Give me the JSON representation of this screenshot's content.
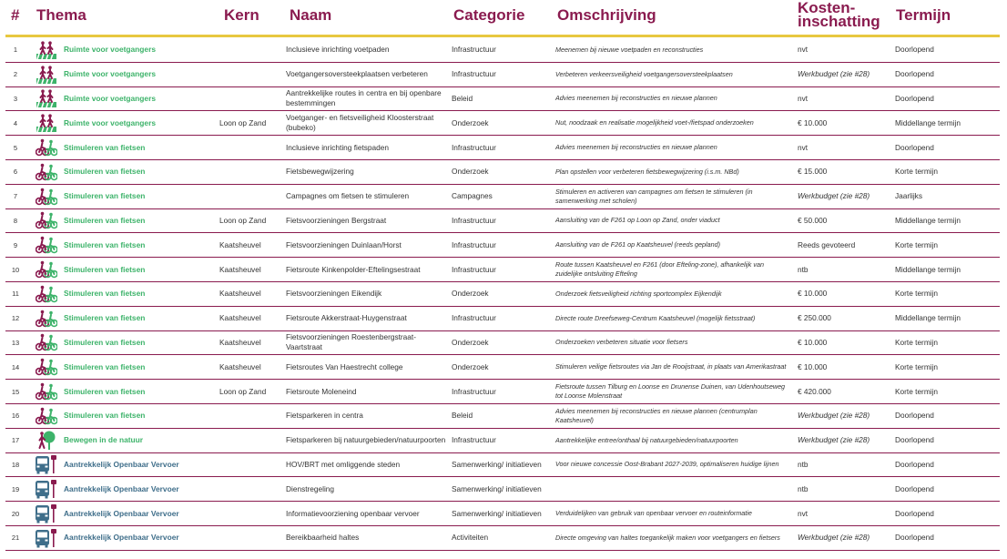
{
  "header": {
    "num": "#",
    "thema": "Thema",
    "kern": "Kern",
    "naam": "Naam",
    "categorie": "Categorie",
    "omschrijving": "Omschrijving",
    "kosten_line1": "Kosten-",
    "kosten_line2": "inschatting",
    "termijn": "Termijn"
  },
  "colors": {
    "header_text": "#8a1b4f",
    "gold_rule": "#e8c840",
    "row_rule": "#8a1b4f",
    "thema_green": "#3db36a",
    "thema_blue": "#3f6e8a"
  },
  "rows": [
    {
      "num": "1",
      "icon": "pedestrians-icon",
      "thema": "Ruimte voor voetgangers",
      "kern": "",
      "naam": "Inclusieve inrichting voetpaden",
      "categorie": "Infrastructuur",
      "omschrijving": "Meenemen bij nieuwe voetpaden en reconstructies",
      "kosten": "nvt",
      "termijn": "Doorlopend",
      "tone": "green",
      "cost_italic": false
    },
    {
      "num": "2",
      "icon": "pedestrians-icon",
      "thema": "Ruimte voor voetgangers",
      "kern": "",
      "naam": "Voetgangersoversteekplaatsen verbeteren",
      "categorie": "Infrastructuur",
      "omschrijving": "Verbeteren verkeersveiligheid voetgangersoversteekplaatsen",
      "kosten": "Werkbudget (zie #28)",
      "termijn": "Doorlopend",
      "tone": "green",
      "cost_italic": true
    },
    {
      "num": "3",
      "icon": "pedestrians-icon",
      "thema": "Ruimte voor voetgangers",
      "kern": "",
      "naam": "Aantrekkelijke routes in centra en bij openbare bestemmingen",
      "categorie": "Beleid",
      "omschrijving": "Advies meenemen bij reconstructies en nieuwe plannen",
      "kosten": "nvt",
      "termijn": "Doorlopend",
      "tone": "green",
      "cost_italic": false
    },
    {
      "num": "4",
      "icon": "pedestrians-icon",
      "thema": "Ruimte voor voetgangers",
      "kern": "Loon op Zand",
      "naam": "Voetganger- en fietsveiligheid Kloosterstraat (bubeko)",
      "categorie": "Onderzoek",
      "omschrijving": "Nut, noodzaak en realisatie mogelijkheid voet-/fietspad onderzoeken",
      "kosten": "€ 10.000",
      "termijn": "Middellange termijn",
      "tone": "green",
      "cost_italic": false
    },
    {
      "num": "5",
      "icon": "cyclists-icon",
      "thema": "Stimuleren van fietsen",
      "kern": "",
      "naam": "Inclusieve inrichting fietspaden",
      "categorie": "Infrastructuur",
      "omschrijving": "Advies meenemen bij reconstructies en nieuwe plannen",
      "kosten": "nvt",
      "termijn": "Doorlopend",
      "tone": "green",
      "cost_italic": false
    },
    {
      "num": "6",
      "icon": "cyclists-icon",
      "thema": "Stimuleren van fietsen",
      "kern": "",
      "naam": "Fietsbewegwijzering",
      "categorie": "Onderzoek",
      "omschrijving": "Plan opstellen voor verbeteren fietsbewegwijzering (i.s.m. NBd)",
      "kosten": "€ 15.000",
      "termijn": "Korte termijn",
      "tone": "green",
      "cost_italic": false
    },
    {
      "num": "7",
      "icon": "cyclists-icon",
      "thema": "Stimuleren van fietsen",
      "kern": "",
      "naam": "Campagnes om fietsen te stimuleren",
      "categorie": "Campagnes",
      "omschrijving": "Stimuleren en activeren van campagnes om fietsen te stimuleren (in samenwerking met scholen)",
      "kosten": "Werkbudget (zie #28)",
      "termijn": "Jaarlijks",
      "tone": "green",
      "cost_italic": true
    },
    {
      "num": "8",
      "icon": "cyclists-icon",
      "thema": "Stimuleren van fietsen",
      "kern": "Loon op Zand",
      "naam": "Fietsvoorzieningen Bergstraat",
      "categorie": "Infrastructuur",
      "omschrijving": "Aansluiting van de F261 op Loon op Zand, onder viaduct",
      "kosten": "€ 50.000",
      "termijn": "Middellange termijn",
      "tone": "green",
      "cost_italic": false
    },
    {
      "num": "9",
      "icon": "cyclists-icon",
      "thema": "Stimuleren van fietsen",
      "kern": "Kaatsheuvel",
      "naam": "Fietsvoorzieningen Duinlaan/Horst",
      "categorie": "Infrastructuur",
      "omschrijving": "Aansluiting van de F261 op Kaatsheuvel (reeds gepland)",
      "kosten": "Reeds gevoteerd",
      "termijn": "Korte termijn",
      "tone": "green",
      "cost_italic": false
    },
    {
      "num": "10",
      "icon": "cyclists-icon",
      "thema": "Stimuleren van fietsen",
      "kern": "Kaatsheuvel",
      "naam": "Fietsroute Kinkenpolder-Eftelingsestraat",
      "categorie": "Infrastructuur",
      "omschrijving": "Route tussen Kaatsheuvel en F261 (door Efteling-zone), afhankelijk van zuidelijke ontsluiting Efteling",
      "kosten": "ntb",
      "termijn": "Middellange termijn",
      "tone": "green",
      "cost_italic": false
    },
    {
      "num": "11",
      "icon": "cyclists-icon",
      "thema": "Stimuleren van fietsen",
      "kern": "Kaatsheuvel",
      "naam": "Fietsvoorzieningen Eikendijk",
      "categorie": "Onderzoek",
      "omschrijving": "Onderzoek fietsveiligheid richting sportcomplex Eijkendijk",
      "kosten": "€ 10.000",
      "termijn": "Korte termijn",
      "tone": "green",
      "cost_italic": false
    },
    {
      "num": "12",
      "icon": "cyclists-icon",
      "thema": "Stimuleren van fietsen",
      "kern": "Kaatsheuvel",
      "naam": "Fietsroute Akkerstraat-Huygenstraat",
      "categorie": "Infrastructuur",
      "omschrijving": "Directe route Dreefseweg-Centrum Kaatsheuvel (mogelijk fietsstraat)",
      "kosten": "€ 250.000",
      "termijn": "Middellange termijn",
      "tone": "green",
      "cost_italic": false
    },
    {
      "num": "13",
      "icon": "cyclists-icon",
      "thema": "Stimuleren van fietsen",
      "kern": "Kaatsheuvel",
      "naam": "Fietsvoorzieningen Roestenbergstraat-Vaartstraat",
      "categorie": "Onderzoek",
      "omschrijving": "Onderzoeken verbeteren situatie voor fietsers",
      "kosten": "€ 10.000",
      "termijn": "Korte termijn",
      "tone": "green",
      "cost_italic": false
    },
    {
      "num": "14",
      "icon": "cyclists-icon",
      "thema": "Stimuleren van fietsen",
      "kern": "Kaatsheuvel",
      "naam": "Fietsroutes Van Haestrecht college",
      "categorie": "Onderzoek",
      "omschrijving": "Stimuleren veilige fietsroutes via Jan de Rooijstraat, in plaats van Amerikastraat",
      "kosten": "€ 10.000",
      "termijn": "Korte termijn",
      "tone": "green",
      "cost_italic": false
    },
    {
      "num": "15",
      "icon": "cyclists-icon",
      "thema": "Stimuleren van fietsen",
      "kern": "Loon op Zand",
      "naam": "Fietsroute Moleneind",
      "categorie": "Infrastructuur",
      "omschrijving": "Fietsroute tussen Tilburg en Loonse en Drunense Duinen, van Udenhoutseweg tot Loonse Molenstraat",
      "kosten": "€ 420.000",
      "termijn": "Korte termijn",
      "tone": "green",
      "cost_italic": false
    },
    {
      "num": "16",
      "icon": "cyclists-icon",
      "thema": "Stimuleren van fietsen",
      "kern": "",
      "naam": "Fietsparkeren in centra",
      "categorie": "Beleid",
      "omschrijving": "Advies meenemen bij reconstructies en nieuwe plannen (centrumplan Kaatsheuvel)",
      "kosten": "Werkbudget (zie #28)",
      "termijn": "Doorlopend",
      "tone": "green",
      "cost_italic": true
    },
    {
      "num": "17",
      "icon": "nature-walker-icon",
      "thema": "Bewegen in de natuur",
      "kern": "",
      "naam": "Fietsparkeren bij natuurgebieden/natuurpoorten",
      "categorie": "Infrastructuur",
      "omschrijving": "Aantrekkelijke entree/onthaal bij natuurgebieden/natuurpoorten",
      "kosten": "Werkbudget (zie #28)",
      "termijn": "Doorlopend",
      "tone": "green",
      "cost_italic": true
    },
    {
      "num": "18",
      "icon": "bus-icon",
      "thema": "Aantrekkelijk Openbaar Vervoer",
      "kern": "",
      "naam": "HOV/BRT met omliggende steden",
      "categorie": "Samenwerking/ initiatieven",
      "omschrijving": "Voor nieuwe concessie Oost-Brabant 2027-2039, optimaliseren huidige lijnen",
      "kosten": "ntb",
      "termijn": "Doorlopend",
      "tone": "blue",
      "cost_italic": false
    },
    {
      "num": "19",
      "icon": "bus-icon",
      "thema": "Aantrekkelijk Openbaar Vervoer",
      "kern": "",
      "naam": "Dienstregeling",
      "categorie": "Samenwerking/ initiatieven",
      "omschrijving": "",
      "kosten": "ntb",
      "termijn": "Doorlopend",
      "tone": "blue",
      "cost_italic": false
    },
    {
      "num": "20",
      "icon": "bus-icon",
      "thema": "Aantrekkelijk Openbaar Vervoer",
      "kern": "",
      "naam": "Informatievoorziening openbaar vervoer",
      "categorie": "Samenwerking/ initiatieven",
      "omschrijving": "Verduidelijken van gebruik van openbaar vervoer en routeinformatie",
      "kosten": "nvt",
      "termijn": "Doorlopend",
      "tone": "blue",
      "cost_italic": false
    },
    {
      "num": "21",
      "icon": "bus-icon",
      "thema": "Aantrekkelijk Openbaar Vervoer",
      "kern": "",
      "naam": "Bereikbaarheid haltes",
      "categorie": "Activiteiten",
      "omschrijving": "Directe omgeving van haltes toegankelijk maken voor voetgangers en fietsers",
      "kosten": "Werkbudget (zie #28)",
      "termijn": "Doorlopend",
      "tone": "blue",
      "cost_italic": true
    }
  ]
}
